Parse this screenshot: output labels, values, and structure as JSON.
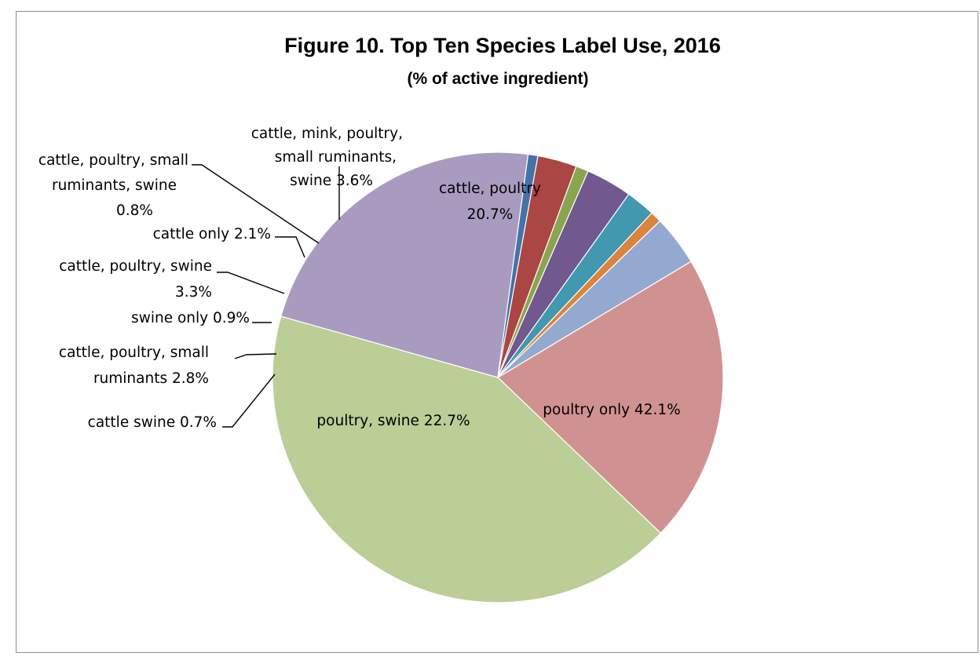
{
  "chart_data": {
    "type": "pie",
    "title": "Figure 10. Top Ten Species Label Use, 2016",
    "subtitle": "(% of active ingredient)",
    "start_angle_deg": 59,
    "direction": "clockwise",
    "slices": [
      {
        "label": "cattle, poultry",
        "value": 20.7,
        "color": "#D09291",
        "label_lines": [
          "cattle, poultry",
          "20.7%"
        ]
      },
      {
        "label": "poultry only",
        "value": 42.1,
        "color": "#BACE96",
        "label_lines": [
          "poultry only 42.1%"
        ]
      },
      {
        "label": "poultry, swine",
        "value": 22.7,
        "color": "#A99BC0",
        "label_lines": [
          "poultry, swine 22.7%"
        ]
      },
      {
        "label": "cattle swine",
        "value": 0.7,
        "color": "#4572A7",
        "label_lines": [
          "cattle swine 0.7%"
        ]
      },
      {
        "label": "cattle, poultry, small ruminants",
        "value": 2.8,
        "color": "#AA4643",
        "label_lines": [
          "cattle, poultry, small",
          "ruminants 2.8%"
        ]
      },
      {
        "label": "swine only",
        "value": 0.9,
        "color": "#89A54E",
        "label_lines": [
          "swine only 0.9%"
        ]
      },
      {
        "label": "cattle, poultry, swine",
        "value": 3.3,
        "color": "#71588F",
        "label_lines": [
          "cattle, poultry, swine",
          "3.3%"
        ]
      },
      {
        "label": "cattle only",
        "value": 2.1,
        "color": "#4198AF",
        "label_lines": [
          "cattle only 2.1%"
        ]
      },
      {
        "label": "cattle, poultry, small ruminants, swine",
        "value": 0.8,
        "color": "#DB843D",
        "label_lines": [
          "cattle, poultry, small",
          "ruminants, swine",
          "0.8%"
        ]
      },
      {
        "label": "cattle, mink, poultry, small ruminants, swine",
        "value": 3.6,
        "color": "#93A9CF",
        "label_lines": [
          "cattle, mink, poultry,",
          "small ruminants,",
          "swine 3.6%"
        ]
      }
    ]
  }
}
